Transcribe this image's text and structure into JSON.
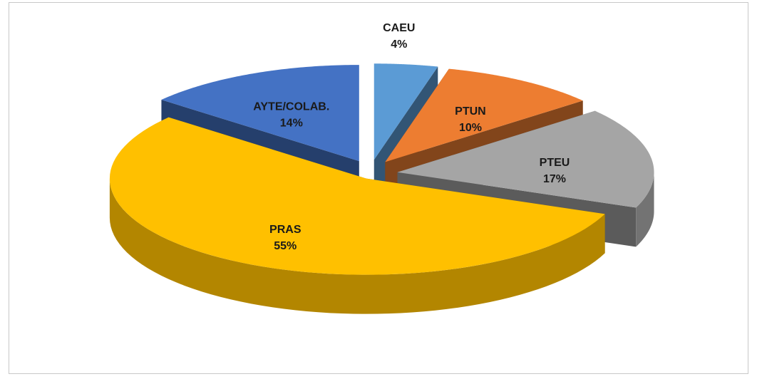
{
  "chart_data": {
    "type": "pie",
    "categories": [
      "CAEU",
      "PTUN",
      "PTEU",
      "PRAS",
      "AYTE/COLAB."
    ],
    "values": [
      4,
      10,
      17,
      55,
      14
    ],
    "value_labels": [
      "4%",
      "10%",
      "17%",
      "55%",
      "14%"
    ],
    "colors": [
      "#5b9bd5",
      "#ed7d31",
      "#a5a5a5",
      "#ffc000",
      "#4472c4"
    ]
  }
}
